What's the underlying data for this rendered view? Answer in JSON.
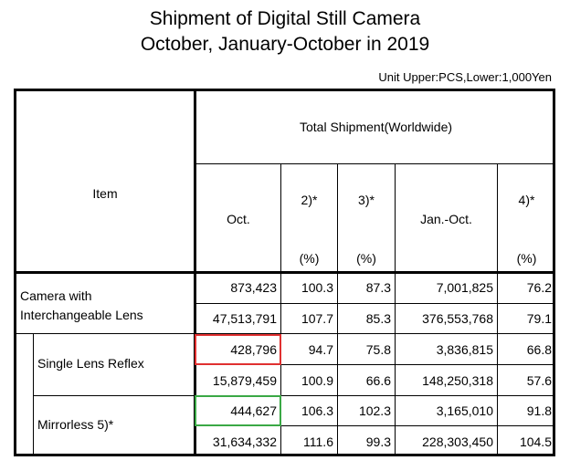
{
  "title_line1": "Shipment of Digital Still Camera",
  "title_line2": "October, January-October in 2019",
  "unit_note": "Unit Upper:PCS,Lower:1,000Yen",
  "header": {
    "item": "Item",
    "group": "Total Shipment(Worldwide)",
    "oct": "Oct.",
    "col2_note": "2)*",
    "col2_unit": "(%)",
    "col3_note": "3)*",
    "col3_unit": "(%)",
    "janoct": "Jan.-Oct.",
    "col4_note": "4)*",
    "col4_unit": "(%)"
  },
  "rows": [
    {
      "label1": "Camera with",
      "label2": "Interchangeable Lens",
      "upper": [
        "873,423",
        "100.3",
        "87.3",
        "7,001,825",
        "76.2"
      ],
      "lower": [
        "47,513,791",
        "107.7",
        "85.3",
        "376,553,768",
        "79.1"
      ]
    },
    {
      "label1": "Single Lens Reflex",
      "upper": [
        "428,796",
        "94.7",
        "75.8",
        "3,836,815",
        "66.8"
      ],
      "lower": [
        "15,879,459",
        "100.9",
        "66.6",
        "148,250,318",
        "57.6"
      ]
    },
    {
      "label1": "Mirrorless 5)*",
      "upper": [
        "444,627",
        "106.3",
        "102.3",
        "3,165,010",
        "91.8"
      ],
      "lower": [
        "31,634,332",
        "111.6",
        "99.3",
        "228,303,450",
        "104.5"
      ]
    }
  ],
  "highlight_colors": {
    "red": "#e03030",
    "green": "#3aa845"
  }
}
